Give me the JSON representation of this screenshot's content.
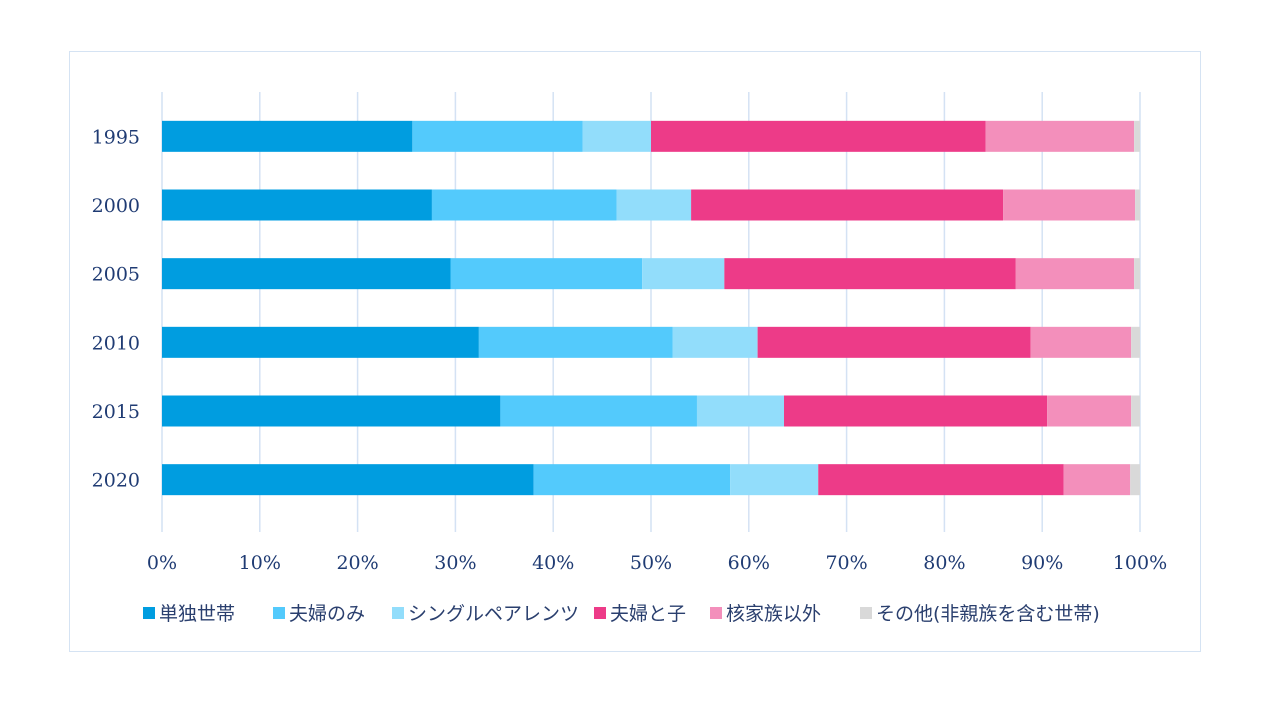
{
  "chart_data": {
    "type": "bar",
    "orientation": "horizontal",
    "stacked": "percent",
    "categories": [
      "1995",
      "2000",
      "2005",
      "2010",
      "2015",
      "2020"
    ],
    "series": [
      {
        "name": "単独世帯",
        "color": "#009de0",
        "values": [
          25.6,
          27.6,
          29.5,
          32.4,
          34.6,
          38.0
        ]
      },
      {
        "name": "夫婦のみ",
        "color": "#53cafc",
        "values": [
          17.4,
          18.9,
          19.6,
          19.8,
          20.1,
          20.1
        ]
      },
      {
        "name": "シングルペアレンツ",
        "color": "#92ddfb",
        "values": [
          7.0,
          7.6,
          8.4,
          8.7,
          8.9,
          9.0
        ]
      },
      {
        "name": "夫婦と子",
        "color": "#ed3b88",
        "values": [
          34.2,
          31.9,
          29.8,
          27.9,
          26.9,
          25.1
        ]
      },
      {
        "name": "核家族以外",
        "color": "#f38fbb",
        "values": [
          15.2,
          13.5,
          12.1,
          10.3,
          8.6,
          6.8
        ]
      },
      {
        "name": "その他(非親族を含む世帯)",
        "color": "#d9d9d9",
        "values": [
          0.6,
          0.5,
          0.6,
          0.9,
          0.9,
          1.0
        ]
      }
    ],
    "x_ticks": [
      "0%",
      "10%",
      "20%",
      "30%",
      "40%",
      "50%",
      "60%",
      "70%",
      "80%",
      "90%",
      "100%"
    ],
    "xlim": [
      0,
      100
    ],
    "grid": "vertical",
    "legend": "bottom"
  }
}
